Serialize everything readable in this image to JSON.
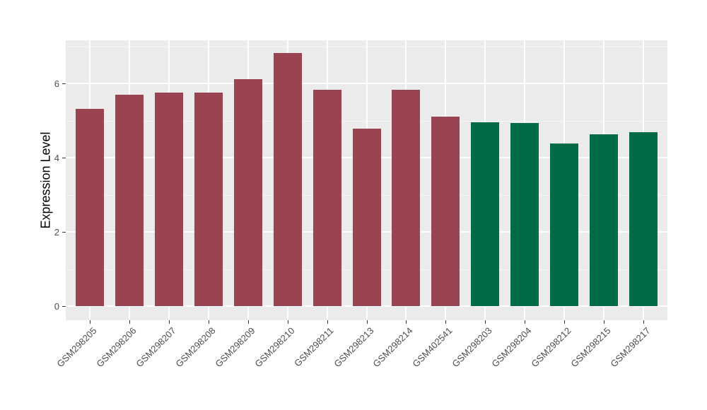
{
  "chart_data": {
    "type": "bar",
    "title": "",
    "xlabel": "",
    "ylabel": "Expression Level",
    "categories": [
      "GSM298205",
      "GSM298206",
      "GSM298207",
      "GSM298208",
      "GSM298209",
      "GSM298210",
      "GSM298211",
      "GSM298213",
      "GSM298214",
      "GSM402541",
      "GSM298203",
      "GSM298204",
      "GSM298212",
      "GSM298215",
      "GSM298217"
    ],
    "values": [
      5.33,
      5.7,
      5.76,
      5.76,
      6.13,
      6.82,
      5.83,
      4.79,
      5.84,
      5.11,
      4.95,
      4.93,
      4.38,
      4.64,
      4.69
    ],
    "bar_colors": [
      "#9A4452",
      "#9A4452",
      "#9A4452",
      "#9A4452",
      "#9A4452",
      "#9A4452",
      "#9A4452",
      "#9A4452",
      "#9A4452",
      "#9A4452",
      "#016A48",
      "#016A48",
      "#016A48",
      "#016A48",
      "#016A48"
    ],
    "groups": [
      "maroon",
      "maroon",
      "maroon",
      "maroon",
      "maroon",
      "maroon",
      "maroon",
      "maroon",
      "maroon",
      "maroon",
      "green",
      "green",
      "green",
      "green",
      "green"
    ],
    "group_colors": {
      "maroon": "#9A4452",
      "green": "#016A48"
    },
    "yticks": [
      0,
      2,
      4,
      6
    ],
    "minor_yticks": [
      1,
      3,
      5,
      7
    ],
    "ylim": [
      -0.38,
      7.17
    ],
    "grid": "on",
    "legend": "none",
    "panel_bg": "#EBEBEB",
    "grid_major_color": "#FFFFFF",
    "grid_minor_color": "rgba(255,255,255,0.55)",
    "tick_color": "#333333"
  }
}
